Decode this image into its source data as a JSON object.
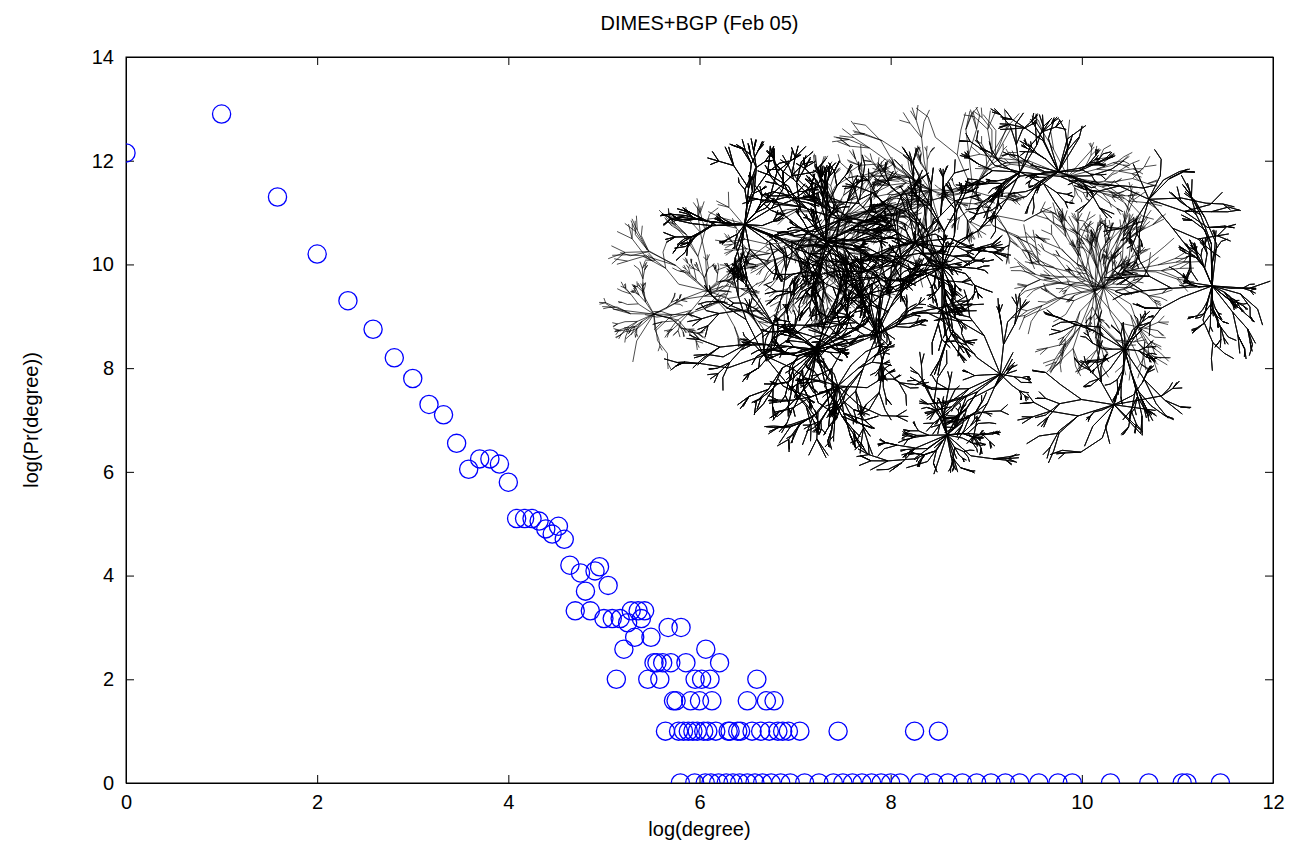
{
  "chart_data": {
    "type": "scatter",
    "title": "DIMES+BGP (Feb 05)",
    "x_label": "log(degree)",
    "y_label": "log(Pr(degree))",
    "x": [
      0,
      1,
      1.585,
      2,
      2.322,
      2.585,
      2.807,
      3,
      3.17,
      3.322,
      3.459,
      3.585,
      3.7,
      3.807,
      3.907,
      4,
      4.087,
      4.17,
      4.248,
      4.322,
      4.392,
      4.459,
      4.524,
      4.585,
      4.644,
      4.7,
      4.755,
      4.807,
      4.858,
      4.907,
      4.954,
      5,
      5.044,
      5.087,
      5.13,
      5.17,
      5.209,
      5.248,
      5.285,
      5.322,
      5.358,
      5.392,
      5.426,
      5.459,
      5.492,
      5.524,
      5.555,
      5.585,
      5.615,
      5.644,
      5.672,
      5.7,
      5.728,
      5.755,
      5.781,
      5.807,
      5.833,
      5.858,
      5.883,
      5.907,
      5.931,
      5.954,
      5.977,
      6,
      6.022,
      6.044,
      6.066,
      6.087,
      6.11,
      6.13,
      6.17,
      6.21,
      6.3,
      6.32,
      6.4,
      6.43,
      6.5,
      6.55,
      6.6,
      6.64,
      6.7,
      6.73,
      6.78,
      6.82,
      6.87,
      6.93,
      7.05,
      7.45,
      8.25,
      8.5,
      5.8,
      5.95,
      6.06,
      6.12,
      6.2,
      6.28,
      6.35,
      6.42,
      6.5,
      6.58,
      6.66,
      6.75,
      6.85,
      6.95,
      7.1,
      7.25,
      7.4,
      7.5,
      7.6,
      7.7,
      7.8,
      7.9,
      8.0,
      8.1,
      8.3,
      8.45,
      8.6,
      8.75,
      8.9,
      9.05,
      9.2,
      9.35,
      9.55,
      9.75,
      9.9,
      10.3,
      10.7,
      11.05,
      11.1,
      11.45
    ],
    "values": [
      12.15,
      12.9,
      11.3,
      10.2,
      9.3,
      8.75,
      8.2,
      7.8,
      7.3,
      7.1,
      6.55,
      6.05,
      6.25,
      6.25,
      6.15,
      5.8,
      5.1,
      5.1,
      5.1,
      5.05,
      4.9,
      4.8,
      4.95,
      4.7,
      4.2,
      3.32,
      4.05,
      3.7,
      3.32,
      4.09,
      4.17,
      3.17,
      3.81,
      3.17,
      2,
      3.17,
      2.58,
      3.09,
      3.32,
      2.81,
      3.32,
      3.17,
      3.32,
      2,
      2.81,
      2.32,
      2.32,
      2,
      2.32,
      1,
      3,
      2.32,
      1.585,
      1.585,
      1,
      3,
      1,
      2.32,
      1,
      1.585,
      1,
      2,
      1,
      1.585,
      2,
      1,
      2.58,
      1,
      2,
      1.585,
      1,
      2.32,
      1,
      1,
      1,
      1,
      1.585,
      1,
      2,
      1,
      1.585,
      1,
      1.585,
      1,
      1,
      1,
      1,
      1,
      1,
      1,
      0,
      0,
      0,
      0,
      0,
      0,
      0,
      0,
      0,
      0,
      0,
      0,
      0,
      0,
      0,
      0,
      0,
      0,
      0,
      0,
      0,
      0,
      0,
      0,
      0,
      0,
      0,
      0,
      0,
      0,
      0,
      0,
      0,
      0,
      0,
      0,
      0,
      0,
      0,
      0
    ],
    "color": "#0000ff",
    "marker": "circle",
    "xlim": [
      0,
      12
    ],
    "xticks": [
      0,
      2,
      4,
      6,
      8,
      10,
      12
    ],
    "ylim": [
      0,
      14
    ],
    "yticks": [
      0,
      2,
      4,
      6,
      8,
      10,
      12,
      14
    ],
    "grid": false
  }
}
